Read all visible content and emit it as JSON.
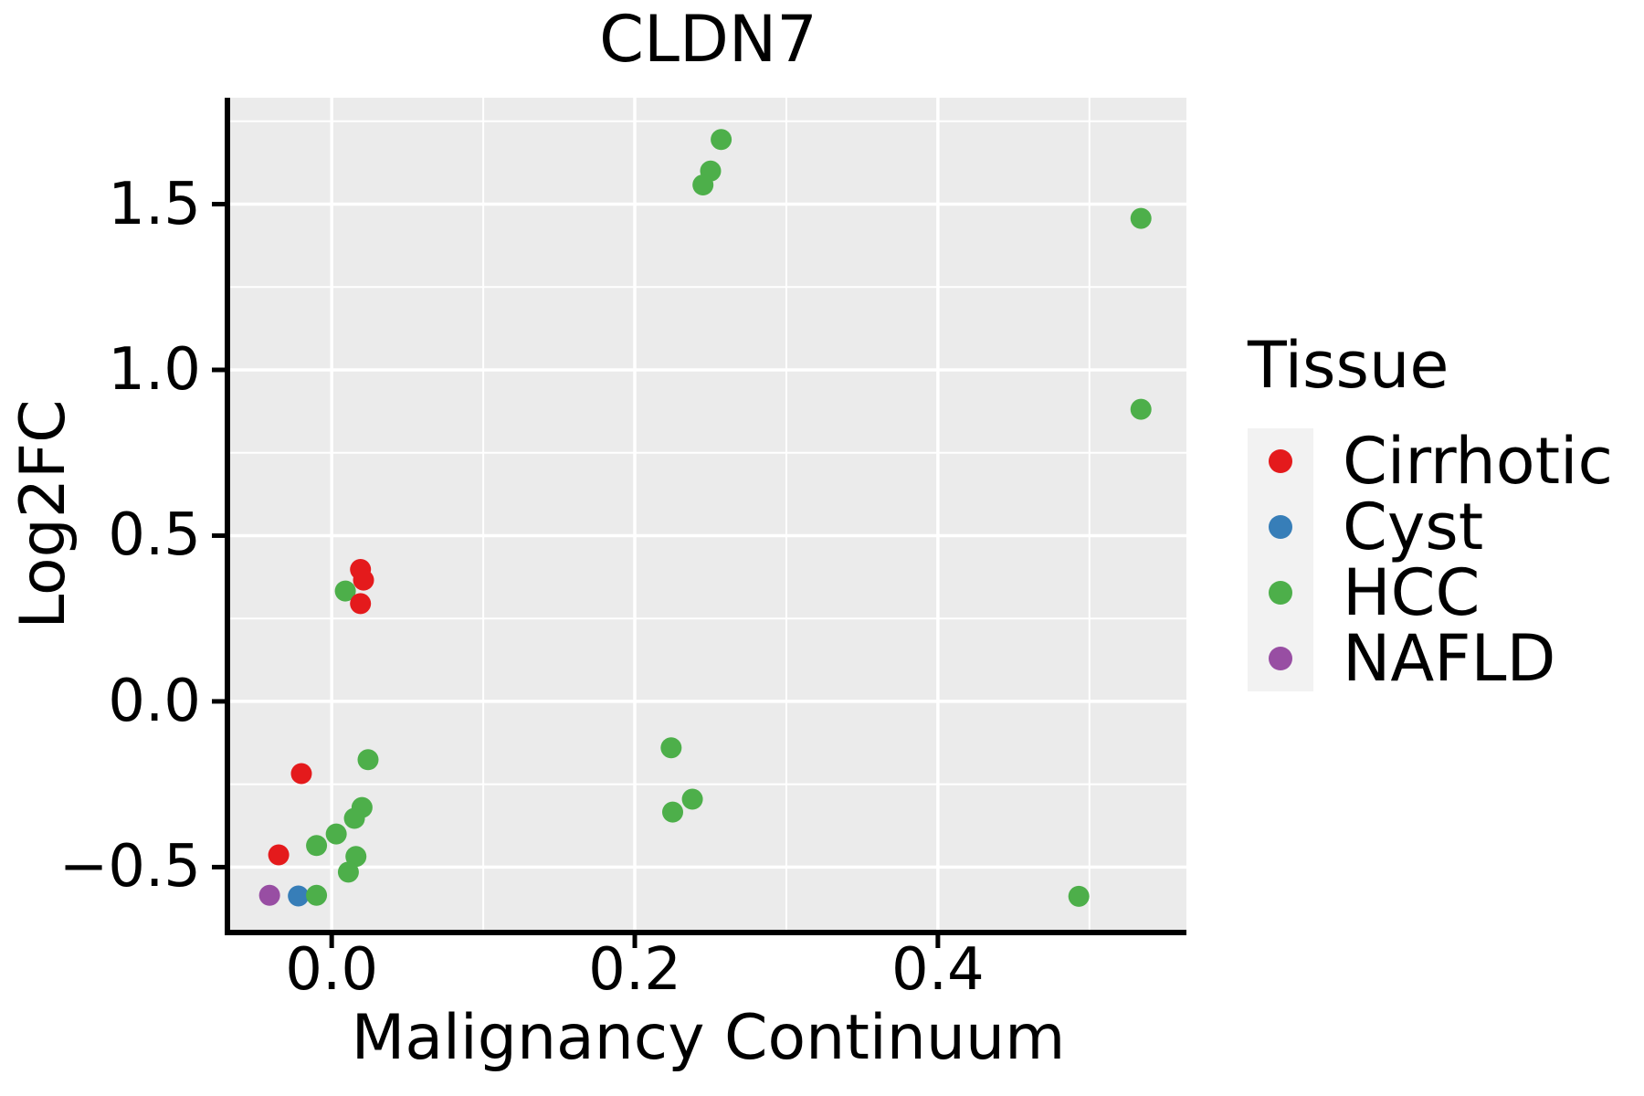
{
  "figure": {
    "title": "CLDN7"
  },
  "axes": {
    "x_title": "Malignancy Continuum",
    "y_title": "Log2FC",
    "x_tick_labels": [
      "0.0",
      "0.2",
      "0.4"
    ],
    "y_tick_labels": [
      "−0.5",
      "0.0",
      "0.5",
      "1.0",
      "1.5"
    ]
  },
  "legend": {
    "title": "Tissue",
    "items": [
      {
        "label": "Cirrhotic",
        "color": "#E41A1C"
      },
      {
        "label": "Cyst",
        "color": "#377EB8"
      },
      {
        "label": "HCC",
        "color": "#4DAF4A"
      },
      {
        "label": "NAFLD",
        "color": "#984EA3"
      }
    ]
  },
  "colors": {
    "panel_bg": "#EBEBEB",
    "grid": "#FFFFFF",
    "legend_key_bg": "#F2F2F2",
    "axis": "#000000",
    "page_bg": "#FFFFFF"
  },
  "chart_data": {
    "type": "scatter",
    "title": "CLDN7",
    "xlabel": "Malignancy Continuum",
    "ylabel": "Log2FC",
    "xlim": [
      -0.067,
      0.564
    ],
    "ylim": [
      -0.689,
      1.821
    ],
    "x_ticks": [
      0.0,
      0.2,
      0.4
    ],
    "y_ticks": [
      -0.5,
      0.0,
      0.5,
      1.0,
      1.5
    ],
    "x_minor_ticks": [
      0.1,
      0.3,
      0.5
    ],
    "y_minor_ticks": [
      -0.25,
      0.25,
      0.75,
      1.25,
      1.75
    ],
    "grid": true,
    "legend_position": "right",
    "marker_radius": 11.5,
    "series": [
      {
        "name": "Cirrhotic",
        "color": "#E41A1C",
        "points": [
          [
            0.019,
            0.398
          ],
          [
            0.021,
            0.366
          ],
          [
            0.019,
            0.295
          ],
          [
            -0.02,
            -0.218
          ],
          [
            -0.035,
            -0.463
          ]
        ]
      },
      {
        "name": "Cyst",
        "color": "#377EB8",
        "points": [
          [
            -0.022,
            -0.587
          ]
        ]
      },
      {
        "name": "HCC",
        "color": "#4DAF4A",
        "points": [
          [
            0.009,
            0.333
          ],
          [
            0.024,
            -0.176
          ],
          [
            0.02,
            -0.32
          ],
          [
            0.015,
            -0.353
          ],
          [
            0.003,
            -0.4
          ],
          [
            -0.01,
            -0.435
          ],
          [
            0.016,
            -0.468
          ],
          [
            0.011,
            -0.515
          ],
          [
            -0.01,
            -0.585
          ],
          [
            0.224,
            -0.14
          ],
          [
            0.238,
            -0.295
          ],
          [
            0.225,
            -0.334
          ],
          [
            0.257,
            1.695
          ],
          [
            0.25,
            1.6
          ],
          [
            0.245,
            1.558
          ],
          [
            0.534,
            1.457
          ],
          [
            0.534,
            0.881
          ],
          [
            0.493,
            -0.588
          ]
        ]
      },
      {
        "name": "NAFLD",
        "color": "#984EA3",
        "points": [
          [
            -0.041,
            -0.585
          ]
        ]
      }
    ]
  }
}
